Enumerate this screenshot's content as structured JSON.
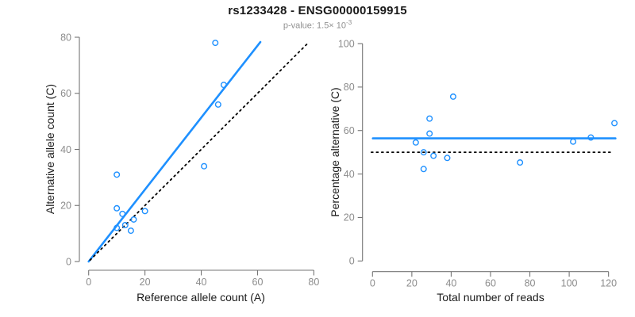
{
  "title": "rs1233428 - ENSG00000159915",
  "subtitle": {
    "text": "p-value: 1.5×10⁻³",
    "prefix": "p-value: 1.5× 10",
    "exponent": "-3"
  },
  "colors": {
    "accent_blue": "#1E90FF",
    "dotted_black": "#000000",
    "tick_label_gray": "#8c8c8c",
    "axis_gray": "#757575",
    "subtitle_gray": "#909090"
  },
  "chart_data": [
    {
      "type": "scatter",
      "name": "allele-counts",
      "xlabel": "Reference allele count (A)",
      "ylabel": "Alternative allele count (C)",
      "xlim": [
        0,
        80
      ],
      "ylim": [
        0,
        80
      ],
      "xticks": [
        0,
        20,
        40,
        60,
        80
      ],
      "yticks": [
        0,
        20,
        40,
        60,
        80
      ],
      "grid": false,
      "points": [
        [
          10,
          31
        ],
        [
          10,
          19
        ],
        [
          12,
          17
        ],
        [
          10,
          12
        ],
        [
          13,
          13
        ],
        [
          16,
          15
        ],
        [
          20,
          18
        ],
        [
          15,
          11
        ],
        [
          41,
          34
        ],
        [
          46,
          56
        ],
        [
          48,
          63
        ],
        [
          45,
          78
        ]
      ],
      "lines": [
        {
          "name": "fit-line",
          "style": "solid",
          "color": "#1E90FF",
          "width": 2.6,
          "x": [
            0,
            61
          ],
          "y": [
            0,
            78.3
          ]
        },
        {
          "name": "identity-line",
          "style": "dotted",
          "color": "#000000",
          "width": 1.8,
          "x": [
            0.5,
            78.2
          ],
          "y": [
            0.5,
            78.2
          ]
        }
      ]
    },
    {
      "type": "scatter",
      "name": "percentage-vs-reads",
      "xlabel": "Total number of reads",
      "ylabel": "Percentage alternative (C)",
      "xlim": [
        0,
        120
      ],
      "ylim": [
        0,
        100
      ],
      "xticks": [
        0,
        20,
        40,
        60,
        80,
        100,
        120
      ],
      "yticks": [
        0,
        20,
        40,
        60,
        80,
        100
      ],
      "grid": false,
      "points": [
        [
          41,
          75.6
        ],
        [
          29,
          65.5
        ],
        [
          29,
          58.6
        ],
        [
          22,
          54.5
        ],
        [
          26,
          50.0
        ],
        [
          31,
          48.4
        ],
        [
          38,
          47.4
        ],
        [
          26,
          42.3
        ],
        [
          75,
          45.3
        ],
        [
          102,
          54.9
        ],
        [
          111,
          56.8
        ],
        [
          123,
          63.4
        ]
      ],
      "lines": [
        {
          "name": "mean-line",
          "style": "solid",
          "color": "#1E90FF",
          "width": 2.6,
          "x": [
            0.2,
            123.5
          ],
          "y": [
            56.4,
            56.4
          ]
        },
        {
          "name": "reference-line",
          "style": "dotted",
          "color": "#000000",
          "width": 1.8,
          "x": [
            -0.6,
            121.5
          ],
          "y": [
            50,
            50
          ]
        }
      ]
    }
  ]
}
